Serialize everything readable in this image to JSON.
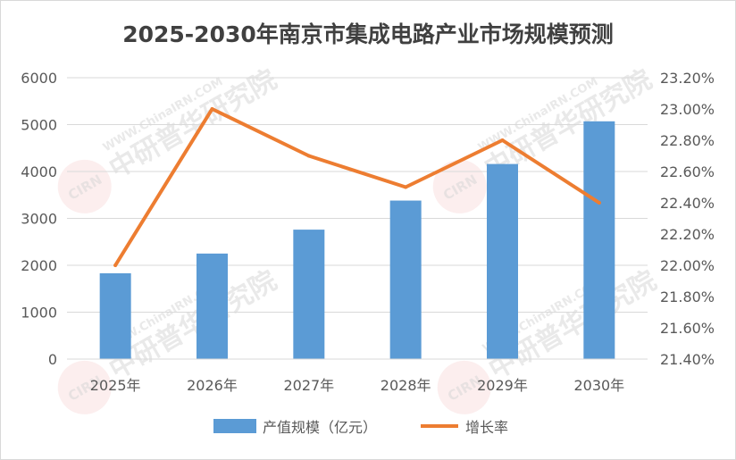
{
  "chart_data": {
    "type": "bar",
    "title": "2025-2030年南京市集成电路产业市场规模预测",
    "categories": [
      "2025年",
      "2026年",
      "2027年",
      "2028年",
      "2029年",
      "2030年"
    ],
    "series": [
      {
        "name": "产值规模（亿元）",
        "type": "bar",
        "axis": "left",
        "color": "#5B9BD5",
        "values": [
          1830,
          2250,
          2760,
          3380,
          4160,
          5070
        ]
      },
      {
        "name": "增长率",
        "type": "line",
        "axis": "right",
        "color": "#ED7D31",
        "values": [
          0.22,
          0.23,
          0.227,
          0.225,
          0.228,
          0.224
        ]
      }
    ],
    "y_left": {
      "min": 0,
      "max": 6000,
      "ticks": [
        "0",
        "1000",
        "2000",
        "3000",
        "4000",
        "5000",
        "6000"
      ]
    },
    "y_right": {
      "min": 0.214,
      "max": 0.232,
      "ticks": [
        "21.40%",
        "21.60%",
        "21.80%",
        "22.00%",
        "22.20%",
        "22.40%",
        "22.60%",
        "22.80%",
        "23.00%",
        "23.20%"
      ]
    },
    "gridlines": true,
    "legend": "bottom"
  },
  "watermark": {
    "text": "中研普华研究院",
    "url_text": "WWW.ChinaIRN.COM",
    "logo_text": "CIRN"
  }
}
